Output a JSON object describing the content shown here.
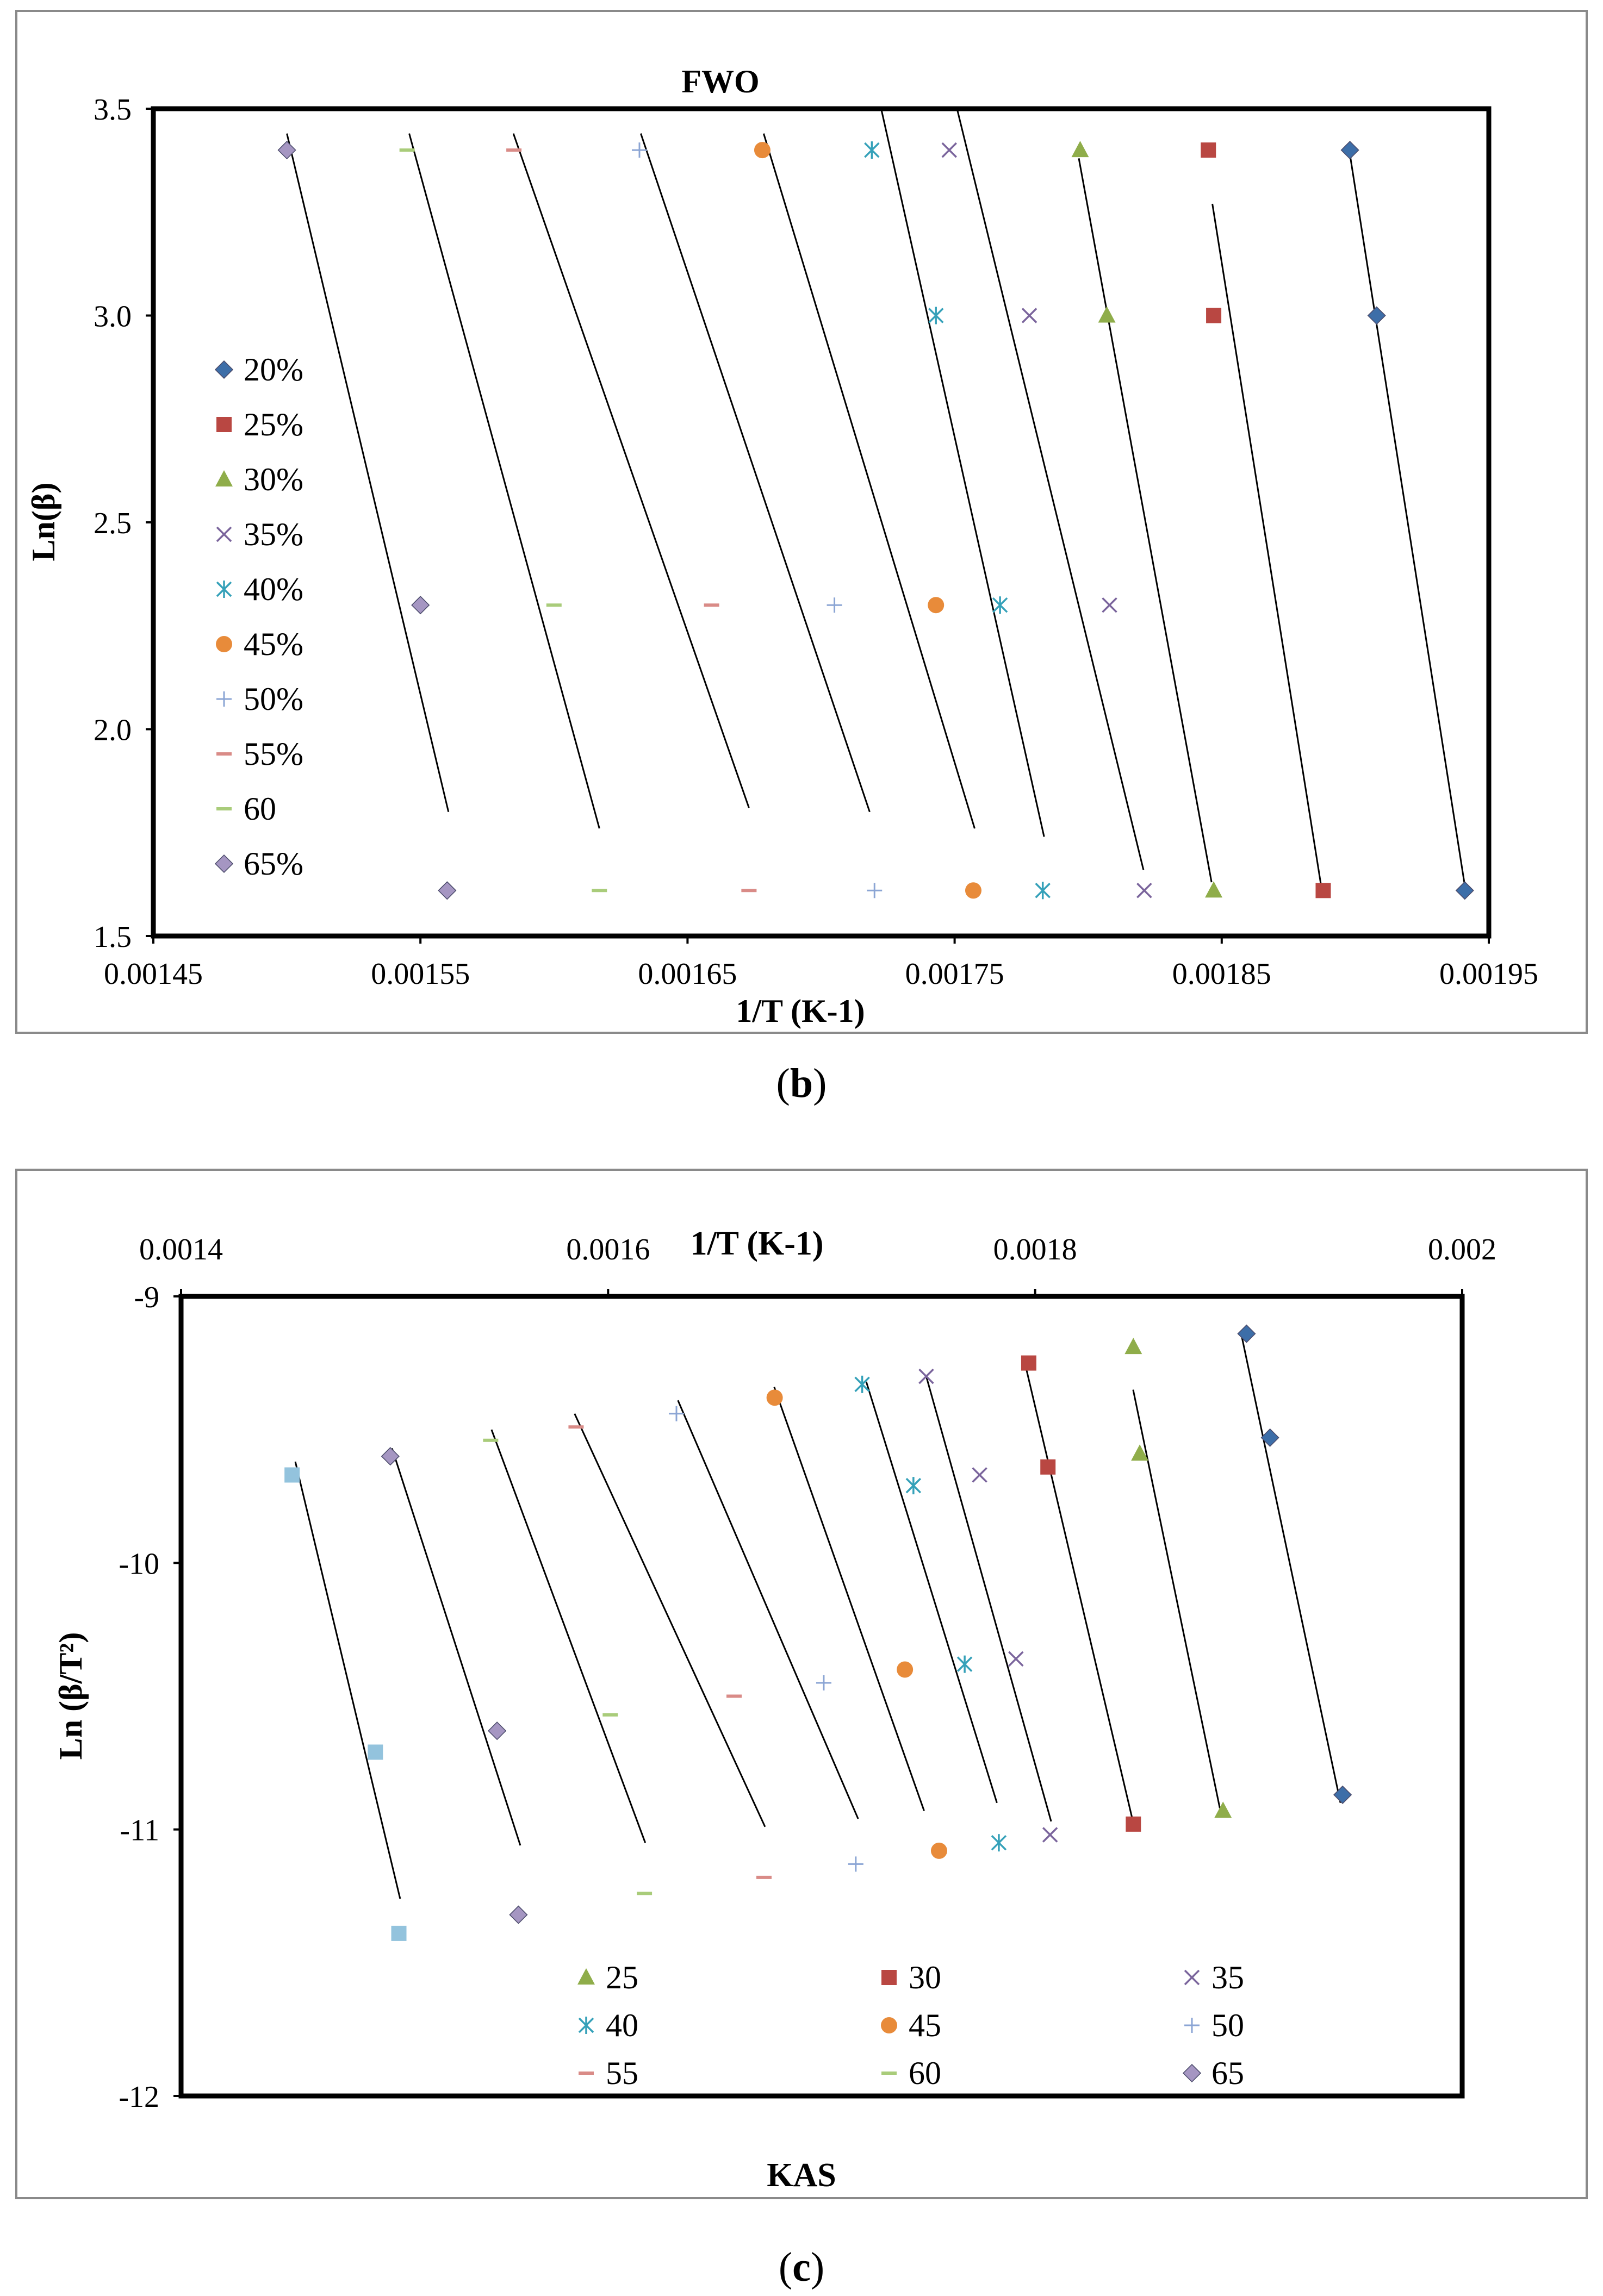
{
  "chart_data": [
    {
      "panel_label": "(b)",
      "panel_letter": "b",
      "type": "scatter",
      "title": "FWO",
      "xlabel": "1/T (K-1)",
      "ylabel": "Ln(β)",
      "xlim": [
        0.00145,
        0.00195
      ],
      "ylim": [
        1.5,
        3.5
      ],
      "x_ticks": [
        "0.00145",
        "0.00155",
        "0.00165",
        "0.00175",
        "0.00185",
        "0.00195"
      ],
      "y_ticks": [
        "1.5",
        "2.0",
        "2.5",
        "3.0",
        "3.5"
      ],
      "legend_position": "left",
      "series": [
        {
          "name": "20%",
          "marker": "diamond",
          "color": "#3d6ea8",
          "points": [
            [
              0.001898,
              3.4
            ],
            [
              0.001908,
              3.0
            ],
            [
              0.001941,
              1.61
            ]
          ],
          "fit": [
            [
              0.0018975,
              3.41
            ],
            [
              0.0019413,
              1.61
            ]
          ]
        },
        {
          "name": "25%",
          "marker": "square",
          "color": "#b94742",
          "points": [
            [
              0.001845,
              3.4
            ],
            [
              0.001847,
              3.0
            ],
            [
              0.001888,
              1.61
            ]
          ],
          "fit": [
            [
              0.0018465,
              3.27
            ],
            [
              0.0018875,
              1.61
            ]
          ]
        },
        {
          "name": "30%",
          "marker": "triangle",
          "color": "#8fad4a",
          "points": [
            [
              0.001797,
              3.4
            ],
            [
              0.001807,
              3.0
            ],
            [
              0.001847,
              1.61
            ]
          ],
          "fit": [
            [
              0.0017965,
              3.38
            ],
            [
              0.0018462,
              1.63
            ]
          ]
        },
        {
          "name": "35%",
          "marker": "x",
          "color": "#7a649c",
          "points": [
            [
              0.001748,
              3.4
            ],
            [
              0.001778,
              3.0
            ],
            [
              0.001808,
              2.3
            ],
            [
              0.001821,
              1.61
            ]
          ],
          "fit": [
            [
              0.0017509,
              3.5
            ],
            [
              0.0018207,
              1.66
            ]
          ]
        },
        {
          "name": "40%",
          "marker": "asterisk",
          "color": "#35a1b9",
          "points": [
            [
              0.001719,
              3.4
            ],
            [
              0.001743,
              3.0
            ],
            [
              0.001767,
              2.3
            ],
            [
              0.001783,
              1.61
            ]
          ],
          "fit": [
            [
              0.0017225,
              3.5
            ],
            [
              0.0017835,
              1.74
            ]
          ]
        },
        {
          "name": "45%",
          "marker": "circle",
          "color": "#e88b3a",
          "points": [
            [
              0.001678,
              3.4
            ],
            [
              0.001743,
              2.3
            ],
            [
              0.001757,
              1.61
            ]
          ],
          "fit": [
            [
              0.0016785,
              3.44
            ],
            [
              0.0017575,
              1.76
            ]
          ]
        },
        {
          "name": "50%",
          "marker": "plus",
          "color": "#8ba5d4",
          "points": [
            [
              0.001632,
              3.4
            ],
            [
              0.001705,
              2.3
            ],
            [
              0.00172,
              1.61
            ]
          ],
          "fit": [
            [
              0.0016325,
              3.44
            ],
            [
              0.0017182,
              1.8
            ]
          ]
        },
        {
          "name": "55%",
          "marker": "dash",
          "color": "#d98b87",
          "points": [
            [
              0.001585,
              3.4
            ],
            [
              0.001659,
              2.3
            ],
            [
              0.001673,
              1.61
            ]
          ],
          "fit": [
            [
              0.0015848,
              3.44
            ],
            [
              0.001673,
              1.81
            ]
          ]
        },
        {
          "name": "60",
          "marker": "dash",
          "color": "#a9cc7a",
          "points": [
            [
              0.001545,
              3.4
            ],
            [
              0.0016,
              2.3
            ],
            [
              0.001617,
              1.61
            ]
          ],
          "fit": [
            [
              0.0015458,
              3.44
            ],
            [
              0.001617,
              1.76
            ]
          ]
        },
        {
          "name": "65%",
          "marker": "diamond",
          "color": "#a596c2",
          "points": [
            [
              0.0015,
              3.4
            ],
            [
              0.00155,
              2.3
            ],
            [
              0.00156,
              1.61
            ]
          ],
          "fit": [
            [
              0.0015,
              3.44
            ],
            [
              0.0015605,
              1.8
            ]
          ]
        }
      ]
    },
    {
      "panel_label": "(c)",
      "panel_letter": "c",
      "type": "scatter",
      "title": "KAS",
      "xlabel": "1/T (K-1)",
      "ylabel": "Ln (β/T²)",
      "xlim": [
        0.0014,
        0.002
      ],
      "ylim": [
        -12,
        -9
      ],
      "x_ticks": [
        "0.0014",
        "0.0016",
        "0.0018",
        "0.002"
      ],
      "y_ticks": [
        "-9",
        "-10",
        "-11",
        "-12"
      ],
      "legend_position": "bottom",
      "series": [
        {
          "name": "",
          "marker": "diamond",
          "color": "#3d6ea8",
          "legend": false,
          "points": [
            [
              0.001899,
              -9.14
            ],
            [
              0.00191,
              -9.53
            ],
            [
              0.001944,
              -10.87
            ]
          ],
          "fit": [
            [
              0.0018965,
              -9.14
            ],
            [
              0.001943,
              -10.9
            ]
          ]
        },
        {
          "name": "25",
          "marker": "triangle",
          "color": "#8fad4a",
          "points": [
            [
              0.001846,
              -9.19
            ],
            [
              0.001849,
              -9.59
            ],
            [
              0.001888,
              -10.93
            ]
          ],
          "fit": [
            [
              0.0018459,
              -9.35
            ],
            [
              0.0018865,
              -10.92
            ]
          ]
        },
        {
          "name": "30",
          "marker": "square",
          "color": "#b94742",
          "points": [
            [
              0.001797,
              -9.25
            ],
            [
              0.001806,
              -9.64
            ],
            [
              0.001846,
              -10.98
            ]
          ],
          "fit": [
            [
              0.0017955,
              -9.26
            ],
            [
              0.0018461,
              -10.98
            ]
          ]
        },
        {
          "name": "35",
          "marker": "x",
          "color": "#7a649c",
          "points": [
            [
              0.001749,
              -9.3
            ],
            [
              0.001774,
              -9.67
            ],
            [
              0.001791,
              -10.36
            ],
            [
              0.001807,
              -11.02
            ]
          ],
          "fit": [
            [
              0.001749,
              -9.3
            ],
            [
              0.0018075,
              -10.97
            ]
          ]
        },
        {
          "name": "40",
          "marker": "asterisk",
          "color": "#35a1b9",
          "points": [
            [
              0.001719,
              -9.33
            ],
            [
              0.001743,
              -9.71
            ],
            [
              0.001767,
              -10.38
            ],
            [
              0.001783,
              -11.05
            ]
          ],
          "fit": [
            [
              0.0017209,
              -9.32
            ],
            [
              0.0017821,
              -10.9
            ]
          ]
        },
        {
          "name": "45",
          "marker": "circle",
          "color": "#e88b3a",
          "points": [
            [
              0.001678,
              -9.38
            ],
            [
              0.001739,
              -10.4
            ],
            [
              0.001755,
              -11.08
            ]
          ],
          "fit": [
            [
              0.0016778,
              -9.34
            ],
            [
              0.001748,
              -10.93
            ]
          ]
        },
        {
          "name": "50",
          "marker": "plus",
          "color": "#8ba5d4",
          "points": [
            [
              0.001632,
              -9.44
            ],
            [
              0.001701,
              -10.45
            ],
            [
              0.001716,
              -11.13
            ]
          ],
          "fit": [
            [
              0.0016327,
              -9.39
            ],
            [
              0.0017171,
              -10.96
            ]
          ]
        },
        {
          "name": "55",
          "marker": "dash",
          "color": "#d98b87",
          "points": [
            [
              0.001585,
              -9.49
            ],
            [
              0.001659,
              -10.5
            ],
            [
              0.001673,
              -11.18
            ]
          ],
          "fit": [
            [
              0.0015843,
              -9.44
            ],
            [
              0.0016735,
              -10.99
            ]
          ]
        },
        {
          "name": "60",
          "marker": "dash",
          "color": "#a9cc7a",
          "points": [
            [
              0.001545,
              -9.54
            ],
            [
              0.001601,
              -10.57
            ],
            [
              0.001617,
              -11.24
            ]
          ],
          "fit": [
            [
              0.0015454,
              -9.5
            ],
            [
              0.0016174,
              -11.05
            ]
          ]
        },
        {
          "name": "65",
          "marker": "diamond",
          "color": "#a596c2",
          "points": [
            [
              0.001498,
              -9.6
            ],
            [
              0.001548,
              -10.63
            ],
            [
              0.001558,
              -11.32
            ]
          ],
          "fit": [
            [
              0.0014988,
              -9.57
            ],
            [
              0.0015589,
              -11.06
            ]
          ]
        },
        {
          "name": "",
          "marker": "square",
          "color": "#93c3dd",
          "legend": false,
          "points": [
            [
              0.001452,
              -9.67
            ],
            [
              0.001491,
              -10.71
            ],
            [
              0.001502,
              -11.39
            ]
          ],
          "fit": [
            [
              0.0014535,
              -9.62
            ],
            [
              0.0015026,
              -11.26
            ]
          ]
        }
      ]
    }
  ]
}
